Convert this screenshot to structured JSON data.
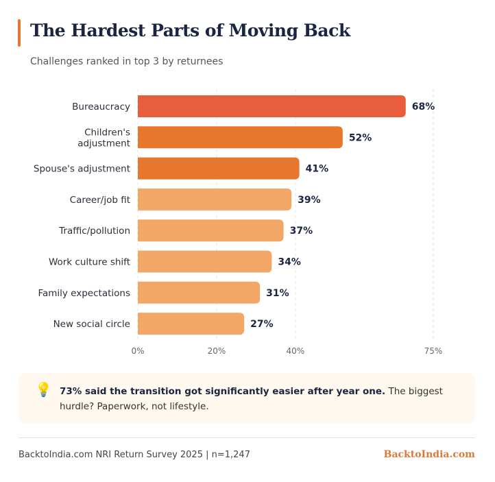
{
  "header": {
    "title": "The Hardest Parts of Moving Back",
    "subtitle": "Challenges ranked in top 3 by returnees"
  },
  "chart_data": {
    "type": "bar",
    "orientation": "horizontal",
    "categories": [
      "Bureaucracy",
      "Children's adjustment",
      "Spouse's adjustment",
      "Career/job fit",
      "Traffic/pollution",
      "Work culture shift",
      "Family expectations",
      "New social circle"
    ],
    "values": [
      68,
      52,
      41,
      39,
      37,
      34,
      31,
      27
    ],
    "value_labels": [
      "68%",
      "52%",
      "41%",
      "39%",
      "37%",
      "34%",
      "31%",
      "27%"
    ],
    "colors": [
      "#E85D3C",
      "#E8772E",
      "#E8772E",
      "#F2A766",
      "#F2A766",
      "#F2A766",
      "#F2A766",
      "#F2A766"
    ],
    "xlim": [
      0,
      75
    ],
    "x_ticks": [
      0,
      20,
      40,
      75
    ],
    "x_tick_labels": [
      "0%",
      "20%",
      "40%",
      "75%"
    ],
    "grid": true
  },
  "callout": {
    "icon": "lightbulb-icon",
    "bold": "73% said the transition got significantly easier after year one.",
    "text": " The biggest hurdle? Paperwork, not lifestyle."
  },
  "footer": {
    "source": "BacktoIndia.com NRI Return Survey 2025 | n=1,247",
    "brand": "BacktoIndia.com"
  }
}
